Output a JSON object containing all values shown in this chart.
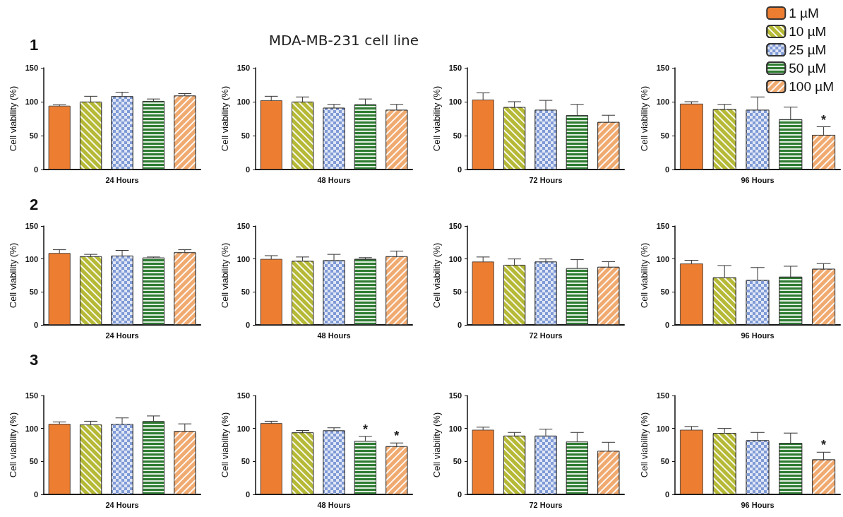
{
  "chart_data": [
    {
      "type": "bar",
      "annotations": [
        "1"
      ],
      "categories": [
        null,
        null,
        null,
        null,
        null
      ],
      "xlabel": "24 Hours",
      "ylabel": "Cell viability (%)",
      "ylim": [
        0,
        150
      ],
      "yticks": [
        0,
        50,
        100,
        150
      ],
      "grid": false,
      "legend": false,
      "series": [
        {
          "color": "#ed7d31",
          "values": [
            94,
            null,
            null,
            null,
            null
          ],
          "errors": [
            1.5,
            null,
            null,
            null,
            null
          ]
        },
        {
          "color": "#b5b935",
          "values": [
            null,
            100,
            null,
            null,
            null
          ],
          "errors": [
            null,
            8,
            null,
            null,
            null
          ]
        },
        {
          "color": "#7f9ad6",
          "values": [
            null,
            null,
            108,
            null,
            null
          ],
          "errors": [
            null,
            null,
            6,
            null,
            null
          ]
        },
        {
          "color": "#2e7d32",
          "values": [
            null,
            null,
            null,
            101,
            null
          ],
          "errors": [
            null,
            null,
            null,
            3,
            null
          ]
        },
        {
          "color": "#f0aa70",
          "values": [
            null,
            null,
            null,
            null,
            109
          ],
          "errors": [
            null,
            null,
            null,
            null,
            3
          ]
        }
      ]
    },
    {
      "type": "bar",
      "title": "MDA-MB-231 cell line",
      "categories": [
        null,
        null,
        null,
        null,
        null
      ],
      "xlabel": "48 Hours",
      "ylabel": "Cell viability (%)",
      "ylim": [
        0,
        150
      ],
      "yticks": [
        0,
        50,
        100,
        150
      ],
      "grid": false,
      "legend": false,
      "series": [
        {
          "color": "#ed7d31",
          "values": [
            102,
            null,
            null,
            null,
            null
          ],
          "errors": [
            6,
            null,
            null,
            null,
            null
          ]
        },
        {
          "color": "#b5b935",
          "values": [
            null,
            100,
            null,
            null,
            null
          ],
          "errors": [
            null,
            7,
            null,
            null,
            null
          ]
        },
        {
          "color": "#7f9ad6",
          "values": [
            null,
            null,
            91,
            null,
            null
          ],
          "errors": [
            null,
            null,
            5,
            null,
            null
          ]
        },
        {
          "color": "#2e7d32",
          "values": [
            null,
            null,
            null,
            96,
            null
          ],
          "errors": [
            null,
            null,
            null,
            8,
            null
          ]
        },
        {
          "color": "#f0aa70",
          "values": [
            null,
            null,
            null,
            null,
            88
          ],
          "errors": [
            null,
            null,
            null,
            null,
            8
          ]
        }
      ]
    },
    {
      "type": "bar",
      "categories": [
        null,
        null,
        null,
        null,
        null
      ],
      "xlabel": "72 Hours",
      "ylabel": "Cell viability (%)",
      "ylim": [
        0,
        150
      ],
      "yticks": [
        0,
        50,
        100,
        150
      ],
      "grid": false,
      "legend": false,
      "series": [
        {
          "color": "#ed7d31",
          "values": [
            103,
            null,
            null,
            null,
            null
          ],
          "errors": [
            10,
            null,
            null,
            null,
            null
          ]
        },
        {
          "color": "#b5b935",
          "values": [
            null,
            92,
            null,
            null,
            null
          ],
          "errors": [
            null,
            8,
            null,
            null,
            null
          ]
        },
        {
          "color": "#7f9ad6",
          "values": [
            null,
            null,
            88,
            null,
            null
          ],
          "errors": [
            null,
            null,
            14,
            null,
            null
          ]
        },
        {
          "color": "#2e7d32",
          "values": [
            null,
            null,
            null,
            80,
            null
          ],
          "errors": [
            null,
            null,
            null,
            16,
            null
          ]
        },
        {
          "color": "#f0aa70",
          "values": [
            null,
            null,
            null,
            null,
            70
          ],
          "errors": [
            null,
            null,
            null,
            null,
            10
          ]
        }
      ]
    },
    {
      "type": "bar",
      "categories": [
        null,
        null,
        null,
        null,
        null
      ],
      "xlabel": "96 Hours",
      "ylabel": "Cell viability (%)",
      "ylim": [
        0,
        150
      ],
      "yticks": [
        0,
        50,
        100,
        150
      ],
      "grid": false,
      "legend": "top right",
      "series": [
        {
          "name": "1 µM",
          "color": "#ed7d31",
          "values": [
            97,
            null,
            null,
            null,
            null
          ],
          "errors": [
            3,
            null,
            null,
            null,
            null
          ]
        },
        {
          "name": "10 µM",
          "color": "#b5b935",
          "values": [
            null,
            89,
            null,
            null,
            null
          ],
          "errors": [
            null,
            7,
            null,
            null,
            null
          ]
        },
        {
          "name": "25 µM",
          "color": "#7f9ad6",
          "values": [
            null,
            null,
            88,
            null,
            null
          ],
          "errors": [
            null,
            null,
            19,
            null,
            null
          ]
        },
        {
          "name": "50 µM",
          "color": "#2e7d32",
          "values": [
            null,
            null,
            null,
            74,
            null
          ],
          "errors": [
            null,
            null,
            null,
            18,
            null
          ]
        },
        {
          "name": "100 µM",
          "color": "#f0aa70",
          "values": [
            null,
            null,
            null,
            null,
            51
          ],
          "errors": [
            null,
            null,
            null,
            null,
            12
          ],
          "value_labels": [
            null,
            null,
            null,
            null,
            "*"
          ]
        }
      ]
    },
    {
      "type": "bar",
      "annotations": [
        "2"
      ],
      "categories": [
        null,
        null,
        null,
        null,
        null
      ],
      "xlabel": "24 Hours",
      "ylabel": "Cell viability (%)",
      "ylim": [
        0,
        150
      ],
      "yticks": [
        0,
        50,
        100,
        150
      ],
      "grid": false,
      "legend": false,
      "series": [
        {
          "color": "#ed7d31",
          "values": [
            109,
            null,
            null,
            null,
            null
          ],
          "errors": [
            5,
            null,
            null,
            null,
            null
          ]
        },
        {
          "color": "#b5b935",
          "values": [
            null,
            104,
            null,
            null,
            null
          ],
          "errors": [
            null,
            3,
            null,
            null,
            null
          ]
        },
        {
          "color": "#7f9ad6",
          "values": [
            null,
            null,
            105,
            null,
            null
          ],
          "errors": [
            null,
            null,
            8,
            null,
            null
          ]
        },
        {
          "color": "#2e7d32",
          "values": [
            null,
            null,
            null,
            102,
            null
          ],
          "errors": [
            null,
            null,
            null,
            1,
            null
          ]
        },
        {
          "color": "#f0aa70",
          "values": [
            null,
            null,
            null,
            null,
            110
          ],
          "errors": [
            null,
            null,
            null,
            null,
            4
          ]
        }
      ]
    },
    {
      "type": "bar",
      "categories": [
        null,
        null,
        null,
        null,
        null
      ],
      "xlabel": "48 Hours",
      "ylabel": "Cell viability (%)",
      "ylim": [
        0,
        150
      ],
      "yticks": [
        0,
        50,
        100,
        150
      ],
      "grid": false,
      "legend": false,
      "series": [
        {
          "color": "#ed7d31",
          "values": [
            100,
            null,
            null,
            null,
            null
          ],
          "errors": [
            5,
            null,
            null,
            null,
            null
          ]
        },
        {
          "color": "#b5b935",
          "values": [
            null,
            97,
            null,
            null,
            null
          ],
          "errors": [
            null,
            6,
            null,
            null,
            null
          ]
        },
        {
          "color": "#7f9ad6",
          "values": [
            null,
            null,
            98,
            null,
            null
          ],
          "errors": [
            null,
            null,
            9,
            null,
            null
          ]
        },
        {
          "color": "#2e7d32",
          "values": [
            null,
            null,
            null,
            100,
            null
          ],
          "errors": [
            null,
            null,
            null,
            2,
            null
          ]
        },
        {
          "color": "#f0aa70",
          "values": [
            null,
            null,
            null,
            null,
            104
          ],
          "errors": [
            null,
            null,
            null,
            null,
            8
          ]
        }
      ]
    },
    {
      "type": "bar",
      "categories": [
        null,
        null,
        null,
        null,
        null
      ],
      "xlabel": "72 Hours",
      "ylabel": "Cell viability (%)",
      "ylim": [
        0,
        150
      ],
      "yticks": [
        0,
        50,
        100,
        150
      ],
      "grid": false,
      "legend": false,
      "series": [
        {
          "color": "#ed7d31",
          "values": [
            96,
            null,
            null,
            null,
            null
          ],
          "errors": [
            7,
            null,
            null,
            null,
            null
          ]
        },
        {
          "color": "#b5b935",
          "values": [
            null,
            91,
            null,
            null,
            null
          ],
          "errors": [
            null,
            9,
            null,
            null,
            null
          ]
        },
        {
          "color": "#7f9ad6",
          "values": [
            null,
            null,
            96,
            null,
            null
          ],
          "errors": [
            null,
            null,
            4,
            null,
            null
          ]
        },
        {
          "color": "#2e7d32",
          "values": [
            null,
            null,
            null,
            86,
            null
          ],
          "errors": [
            null,
            null,
            null,
            13,
            null
          ]
        },
        {
          "color": "#f0aa70",
          "values": [
            null,
            null,
            null,
            null,
            88
          ],
          "errors": [
            null,
            null,
            null,
            null,
            8
          ]
        }
      ]
    },
    {
      "type": "bar",
      "categories": [
        null,
        null,
        null,
        null,
        null
      ],
      "xlabel": "96 Hours",
      "ylabel": "Cell viability (%)",
      "ylim": [
        0,
        150
      ],
      "yticks": [
        0,
        50,
        100,
        150
      ],
      "grid": false,
      "legend": false,
      "series": [
        {
          "color": "#ed7d31",
          "values": [
            93,
            null,
            null,
            null,
            null
          ],
          "errors": [
            5,
            null,
            null,
            null,
            null
          ]
        },
        {
          "color": "#b5b935",
          "values": [
            null,
            72,
            null,
            null,
            null
          ],
          "errors": [
            null,
            18,
            null,
            null,
            null
          ]
        },
        {
          "color": "#7f9ad6",
          "values": [
            null,
            null,
            68,
            null,
            null
          ],
          "errors": [
            null,
            null,
            19,
            null,
            null
          ]
        },
        {
          "color": "#2e7d32",
          "values": [
            null,
            null,
            null,
            73,
            null
          ],
          "errors": [
            null,
            null,
            null,
            16,
            null
          ]
        },
        {
          "color": "#f0aa70",
          "values": [
            null,
            null,
            null,
            null,
            85
          ],
          "errors": [
            null,
            null,
            null,
            null,
            8
          ]
        }
      ]
    },
    {
      "type": "bar",
      "annotations": [
        "3"
      ],
      "categories": [
        null,
        null,
        null,
        null,
        null
      ],
      "xlabel": "24 Hours",
      "ylabel": "Cell viability (%)",
      "ylim": [
        0,
        150
      ],
      "yticks": [
        0,
        50,
        100,
        150
      ],
      "grid": false,
      "legend": false,
      "series": [
        {
          "color": "#ed7d31",
          "values": [
            107,
            null,
            null,
            null,
            null
          ],
          "errors": [
            3,
            null,
            null,
            null,
            null
          ]
        },
        {
          "color": "#b5b935",
          "values": [
            null,
            106,
            null,
            null,
            null
          ],
          "errors": [
            null,
            5,
            null,
            null,
            null
          ]
        },
        {
          "color": "#7f9ad6",
          "values": [
            null,
            null,
            107,
            null,
            null
          ],
          "errors": [
            null,
            null,
            9,
            null,
            null
          ]
        },
        {
          "color": "#2e7d32",
          "values": [
            null,
            null,
            null,
            111,
            null
          ],
          "errors": [
            null,
            null,
            null,
            8,
            null
          ]
        },
        {
          "color": "#f0aa70",
          "values": [
            null,
            null,
            null,
            null,
            96
          ],
          "errors": [
            null,
            null,
            null,
            null,
            11
          ]
        }
      ]
    },
    {
      "type": "bar",
      "categories": [
        null,
        null,
        null,
        null,
        null
      ],
      "xlabel": "48 Hours",
      "ylabel": "Cell viability (%)",
      "ylim": [
        0,
        150
      ],
      "yticks": [
        0,
        50,
        100,
        150
      ],
      "grid": false,
      "legend": false,
      "series": [
        {
          "color": "#ed7d31",
          "values": [
            108,
            null,
            null,
            null,
            null
          ],
          "errors": [
            3,
            null,
            null,
            null,
            null
          ]
        },
        {
          "color": "#b5b935",
          "values": [
            null,
            94,
            null,
            null,
            null
          ],
          "errors": [
            null,
            3,
            null,
            null,
            null
          ]
        },
        {
          "color": "#7f9ad6",
          "values": [
            null,
            null,
            97,
            null,
            null
          ],
          "errors": [
            null,
            null,
            4,
            null,
            null
          ]
        },
        {
          "color": "#2e7d32",
          "values": [
            null,
            null,
            null,
            81,
            null
          ],
          "errors": [
            null,
            null,
            null,
            7,
            null
          ],
          "value_labels": [
            null,
            null,
            null,
            "*",
            null
          ]
        },
        {
          "color": "#f0aa70",
          "values": [
            null,
            null,
            null,
            null,
            73
          ],
          "errors": [
            null,
            null,
            null,
            null,
            5
          ],
          "value_labels": [
            null,
            null,
            null,
            null,
            "*"
          ]
        }
      ]
    },
    {
      "type": "bar",
      "categories": [
        null,
        null,
        null,
        null,
        null
      ],
      "xlabel": "72 Hours",
      "ylabel": "Cell viability (%)",
      "ylim": [
        0,
        150
      ],
      "yticks": [
        0,
        50,
        100,
        150
      ],
      "grid": false,
      "legend": false,
      "series": [
        {
          "color": "#ed7d31",
          "values": [
            98,
            null,
            null,
            null,
            null
          ],
          "errors": [
            4,
            null,
            null,
            null,
            null
          ]
        },
        {
          "color": "#b5b935",
          "values": [
            null,
            89,
            null,
            null,
            null
          ],
          "errors": [
            null,
            5,
            null,
            null,
            null
          ]
        },
        {
          "color": "#7f9ad6",
          "values": [
            null,
            null,
            89,
            null,
            null
          ],
          "errors": [
            null,
            null,
            10,
            null,
            null
          ]
        },
        {
          "color": "#2e7d32",
          "values": [
            null,
            null,
            null,
            80,
            null
          ],
          "errors": [
            null,
            null,
            null,
            14,
            null
          ]
        },
        {
          "color": "#f0aa70",
          "values": [
            null,
            null,
            null,
            null,
            66
          ],
          "errors": [
            null,
            null,
            null,
            null,
            13
          ]
        }
      ]
    },
    {
      "type": "bar",
      "categories": [
        null,
        null,
        null,
        null,
        null
      ],
      "xlabel": "96 Hours",
      "ylabel": "Cell viability (%)",
      "ylim": [
        0,
        150
      ],
      "yticks": [
        0,
        50,
        100,
        150
      ],
      "grid": false,
      "legend": false,
      "series": [
        {
          "color": "#ed7d31",
          "values": [
            98,
            null,
            null,
            null,
            null
          ],
          "errors": [
            5,
            null,
            null,
            null,
            null
          ]
        },
        {
          "color": "#b5b935",
          "values": [
            null,
            93,
            null,
            null,
            null
          ],
          "errors": [
            null,
            7,
            null,
            null,
            null
          ]
        },
        {
          "color": "#7f9ad6",
          "values": [
            null,
            null,
            82,
            null,
            null
          ],
          "errors": [
            null,
            null,
            12,
            null,
            null
          ]
        },
        {
          "color": "#2e7d32",
          "values": [
            null,
            null,
            null,
            78,
            null
          ],
          "errors": [
            null,
            null,
            null,
            15,
            null
          ]
        },
        {
          "color": "#f0aa70",
          "values": [
            null,
            null,
            null,
            null,
            53
          ],
          "errors": [
            null,
            null,
            null,
            null,
            11
          ],
          "value_labels": [
            null,
            null,
            null,
            null,
            "*"
          ]
        }
      ]
    }
  ]
}
